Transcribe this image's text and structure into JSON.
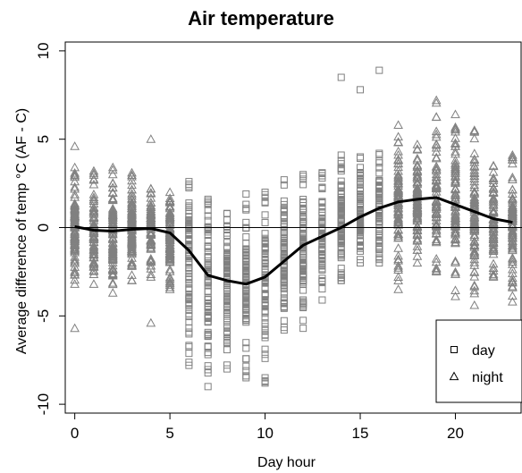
{
  "chart_data": {
    "type": "scatter",
    "title": "Air temperature",
    "xlabel": "Day hour",
    "ylabel": "Average difference of temp °C (AF - C)",
    "xlim": [
      -0.5,
      23.5
    ],
    "ylim": [
      -10.5,
      10.5
    ],
    "x_ticks": [
      0,
      5,
      10,
      15,
      20
    ],
    "y_ticks": [
      -10,
      -5,
      0,
      5,
      10
    ],
    "reference_line_y": 0,
    "point_color": "#808080",
    "line_color": "#000000",
    "legend": {
      "position": "bottom-right",
      "entries": [
        {
          "marker": "square",
          "label": "day"
        },
        {
          "marker": "triangle",
          "label": "night"
        }
      ]
    },
    "mean_line": {
      "x": [
        0,
        1,
        2,
        3,
        4,
        5,
        6,
        7,
        8,
        9,
        10,
        11,
        12,
        13,
        14,
        15,
        16,
        17,
        18,
        19,
        20,
        21,
        22,
        23
      ],
      "y": [
        0.05,
        -0.15,
        -0.2,
        -0.1,
        -0.05,
        -0.3,
        -1.3,
        -2.7,
        -3.0,
        -3.2,
        -2.8,
        -1.9,
        -1.0,
        -0.5,
        0.0,
        0.6,
        1.1,
        1.45,
        1.6,
        1.7,
        1.3,
        0.9,
        0.5,
        0.3
      ]
    },
    "hour_distribution": [
      {
        "hour": 0,
        "marker": "triangle",
        "min": -3.2,
        "max": 3.4,
        "outliers": [
          4.6,
          -5.7
        ]
      },
      {
        "hour": 1,
        "marker": "triangle",
        "min": -3.2,
        "max": 3.2,
        "outliers": []
      },
      {
        "hour": 2,
        "marker": "triangle",
        "min": -3.7,
        "max": 3.4,
        "outliers": []
      },
      {
        "hour": 3,
        "marker": "triangle",
        "min": -3.0,
        "max": 3.1,
        "outliers": []
      },
      {
        "hour": 4,
        "marker": "triangle",
        "min": -2.8,
        "max": 2.2,
        "outliers": [
          5.0,
          -5.4
        ]
      },
      {
        "hour": 5,
        "marker": "triangle",
        "min": -3.5,
        "max": 2.0,
        "outliers": []
      },
      {
        "hour": 6,
        "marker": "square",
        "min": -7.8,
        "max": 2.6,
        "outliers": []
      },
      {
        "hour": 7,
        "marker": "square",
        "min": -9.0,
        "max": 1.6,
        "outliers": []
      },
      {
        "hour": 8,
        "marker": "square",
        "min": -8.0,
        "max": 0.8,
        "outliers": []
      },
      {
        "hour": 9,
        "marker": "square",
        "min": -8.5,
        "max": 1.9,
        "outliers": []
      },
      {
        "hour": 10,
        "marker": "square",
        "min": -8.8,
        "max": 2.0,
        "outliers": []
      },
      {
        "hour": 11,
        "marker": "square",
        "min": -5.8,
        "max": 2.7,
        "outliers": []
      },
      {
        "hour": 12,
        "marker": "square",
        "min": -5.7,
        "max": 3.0,
        "outliers": []
      },
      {
        "hour": 13,
        "marker": "square",
        "min": -4.1,
        "max": 3.1,
        "outliers": []
      },
      {
        "hour": 14,
        "marker": "square",
        "min": -3.0,
        "max": 4.1,
        "outliers": [
          8.5
        ]
      },
      {
        "hour": 15,
        "marker": "square",
        "min": -2.0,
        "max": 4.0,
        "outliers": [
          7.8
        ]
      },
      {
        "hour": 16,
        "marker": "square",
        "min": -2.0,
        "max": 4.2,
        "outliers": [
          8.9
        ]
      },
      {
        "hour": 17,
        "marker": "triangle",
        "min": -3.5,
        "max": 5.8,
        "outliers": []
      },
      {
        "hour": 18,
        "marker": "triangle",
        "min": -2.0,
        "max": 4.7,
        "outliers": []
      },
      {
        "hour": 19,
        "marker": "triangle",
        "min": -2.5,
        "max": 7.2,
        "outliers": []
      },
      {
        "hour": 20,
        "marker": "triangle",
        "min": -3.9,
        "max": 6.4,
        "outliers": []
      },
      {
        "hour": 21,
        "marker": "triangle",
        "min": -4.4,
        "max": 5.5,
        "outliers": []
      },
      {
        "hour": 22,
        "marker": "triangle",
        "min": -2.8,
        "max": 3.5,
        "outliers": []
      },
      {
        "hour": 23,
        "marker": "triangle",
        "min": -4.2,
        "max": 4.1,
        "outliers": []
      }
    ]
  }
}
